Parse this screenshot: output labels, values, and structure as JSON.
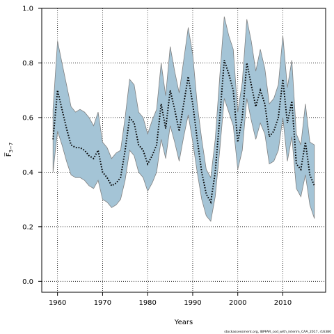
{
  "chart_data": {
    "type": "area",
    "xlabel": "Years",
    "ylabel": "F̅",
    "ylabel_sub": "3−7",
    "footer": "stockassessment.org, IBPFAR_cod_with_interim_CAA_2017, r16380",
    "xlim": [
      1956.5,
      2019.5
    ],
    "ylim": [
      -0.04,
      1.0
    ],
    "x_ticks": [
      1960,
      1970,
      1980,
      1990,
      2000,
      2010
    ],
    "y_ticks": [
      0.0,
      0.2,
      0.4,
      0.6,
      0.8,
      1.0
    ],
    "y_tick_labels": [
      "0.0",
      "0.2",
      "0.4",
      "0.6",
      "0.8",
      "1.0"
    ],
    "grid": true,
    "fill_color": "#a4c4d6",
    "fill_edge_color": "#808080",
    "line_color": "#000000",
    "line_style": "dotted",
    "x": [
      1959,
      1960,
      1961,
      1962,
      1963,
      1964,
      1965,
      1966,
      1967,
      1968,
      1969,
      1970,
      1971,
      1972,
      1973,
      1974,
      1975,
      1976,
      1977,
      1978,
      1979,
      1980,
      1981,
      1982,
      1983,
      1984,
      1985,
      1986,
      1987,
      1988,
      1989,
      1990,
      1991,
      1992,
      1993,
      1994,
      1995,
      1996,
      1997,
      1998,
      1999,
      2000,
      2001,
      2002,
      2003,
      2004,
      2005,
      2006,
      2007,
      2008,
      2009,
      2010,
      2011,
      2012,
      2013,
      2014,
      2015,
      2016,
      2017
    ],
    "series": [
      {
        "name": "estimate",
        "values": [
          0.52,
          0.7,
          0.63,
          0.56,
          0.5,
          0.49,
          0.49,
          0.48,
          0.46,
          0.45,
          0.48,
          0.4,
          0.38,
          0.35,
          0.36,
          0.38,
          0.48,
          0.6,
          0.58,
          0.5,
          0.48,
          0.43,
          0.46,
          0.5,
          0.65,
          0.56,
          0.7,
          0.63,
          0.55,
          0.65,
          0.75,
          0.65,
          0.52,
          0.4,
          0.32,
          0.29,
          0.4,
          0.6,
          0.81,
          0.76,
          0.7,
          0.51,
          0.6,
          0.8,
          0.72,
          0.64,
          0.7,
          0.65,
          0.53,
          0.55,
          0.6,
          0.74,
          0.58,
          0.66,
          0.43,
          0.41,
          0.51,
          0.39,
          0.35
        ]
      },
      {
        "name": "upper",
        "values": [
          0.63,
          0.88,
          0.8,
          0.72,
          0.64,
          0.62,
          0.63,
          0.62,
          0.6,
          0.57,
          0.62,
          0.51,
          0.49,
          0.45,
          0.47,
          0.48,
          0.6,
          0.74,
          0.72,
          0.62,
          0.6,
          0.54,
          0.59,
          0.63,
          0.8,
          0.68,
          0.86,
          0.77,
          0.69,
          0.81,
          0.93,
          0.83,
          0.65,
          0.52,
          0.41,
          0.38,
          0.52,
          0.75,
          0.97,
          0.9,
          0.85,
          0.62,
          0.73,
          0.96,
          0.88,
          0.77,
          0.85,
          0.78,
          0.65,
          0.67,
          0.72,
          0.9,
          0.71,
          0.81,
          0.54,
          0.5,
          0.65,
          0.51,
          0.5
        ]
      },
      {
        "name": "lower",
        "values": [
          0.4,
          0.55,
          0.5,
          0.44,
          0.39,
          0.38,
          0.38,
          0.37,
          0.35,
          0.34,
          0.37,
          0.3,
          0.29,
          0.27,
          0.28,
          0.3,
          0.37,
          0.48,
          0.46,
          0.4,
          0.38,
          0.33,
          0.36,
          0.4,
          0.52,
          0.45,
          0.57,
          0.51,
          0.44,
          0.53,
          0.61,
          0.51,
          0.4,
          0.3,
          0.24,
          0.22,
          0.31,
          0.48,
          0.67,
          0.62,
          0.57,
          0.41,
          0.48,
          0.67,
          0.59,
          0.52,
          0.58,
          0.54,
          0.43,
          0.44,
          0.48,
          0.6,
          0.44,
          0.53,
          0.34,
          0.31,
          0.39,
          0.28,
          0.23
        ]
      }
    ]
  }
}
